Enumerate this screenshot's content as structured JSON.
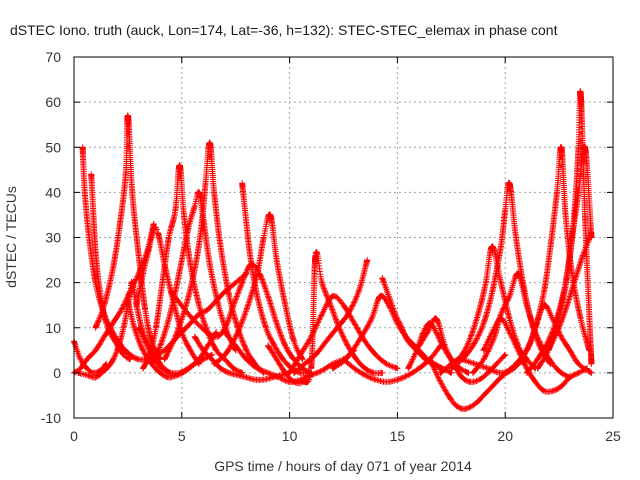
{
  "chart_data": {
    "type": "scatter",
    "title": "dSTEC Iono. truth (auck, Lon=174, Lat=-36, h=132): STEC-STEC_elemax in phase cont",
    "xlabel": "GPS time / hours of day 071 of year 2014",
    "ylabel": "dSTEC  / TECUs",
    "xlim": [
      0,
      25
    ],
    "ylim": [
      -10,
      70
    ],
    "xticks": [
      0,
      5,
      10,
      15,
      20,
      25
    ],
    "yticks": [
      -10,
      0,
      10,
      20,
      30,
      40,
      50,
      60,
      70
    ],
    "grid": true,
    "legend": "none",
    "series_color": "#ff0000",
    "marker": "plus",
    "series": [
      {
        "x": [
          0.0,
          0.3,
          0.6,
          0.9,
          1.2,
          1.5
        ],
        "y": [
          7,
          3,
          1,
          0,
          0.5,
          2
        ]
      },
      {
        "x": [
          0.0,
          0.3,
          0.6,
          1.0,
          1.4,
          1.8,
          2.2,
          2.6,
          3.0,
          3.4,
          3.7
        ],
        "y": [
          0,
          1,
          3,
          5,
          8,
          11,
          14,
          18,
          22,
          27,
          33
        ]
      },
      {
        "x": [
          0.4,
          0.5,
          0.7,
          1.0,
          1.4,
          1.8,
          2.2,
          2.6,
          3.0,
          3.4,
          3.8,
          4.2,
          4.6,
          5.0,
          5.4,
          5.8,
          6.2,
          6.6,
          7.0,
          7.5,
          8.0
        ],
        "y": [
          50,
          40,
          30,
          20,
          13,
          9,
          6,
          4,
          3,
          3,
          4,
          5,
          7,
          9,
          11,
          13,
          14,
          16,
          18,
          20,
          22
        ]
      },
      {
        "x": [
          0.8,
          0.9,
          1.0,
          1.2,
          1.5,
          1.9,
          2.3,
          2.6
        ],
        "y": [
          44,
          35,
          27,
          18,
          11,
          7,
          4,
          3
        ]
      },
      {
        "x": [
          0.2,
          0.6,
          1.0,
          1.4,
          1.7,
          2.0,
          2.3,
          2.6,
          2.7,
          2.9,
          3.2,
          3.6,
          4.0,
          4.4
        ],
        "y": [
          0,
          -0.5,
          -1,
          0.5,
          2,
          5,
          10,
          18,
          20,
          15,
          9,
          5,
          2,
          0
        ]
      },
      {
        "x": [
          1.0,
          1.4,
          1.8,
          2.1,
          2.4,
          2.5,
          2.7,
          3.0,
          3.3,
          3.6,
          4.0
        ],
        "y": [
          10,
          15,
          23,
          32,
          44,
          57,
          40,
          26,
          14,
          7,
          3
        ]
      },
      {
        "x": [
          2.5,
          2.8,
          3.2,
          3.6,
          4.0,
          4.4,
          4.8,
          5.2,
          5.6,
          6.0,
          6.4
        ],
        "y": [
          16,
          10,
          5,
          2,
          0,
          -1,
          -0.5,
          0.5,
          2,
          3,
          4
        ]
      },
      {
        "x": [
          3.0,
          3.3,
          3.7,
          4.1,
          4.5,
          4.9,
          5.3,
          5.8,
          6.2,
          6.6
        ],
        "y": [
          10,
          7,
          3,
          1,
          0,
          0,
          1,
          3,
          6,
          9
        ]
      },
      {
        "x": [
          3.2,
          3.5,
          3.8,
          4.1,
          4.4,
          4.7,
          4.9,
          5.1,
          5.4,
          5.8,
          6.2,
          6.6,
          7.0,
          7.4,
          7.8
        ],
        "y": [
          1,
          4,
          10,
          20,
          30,
          36,
          46,
          35,
          24,
          15,
          9,
          5,
          3,
          1,
          0
        ]
      },
      {
        "x": [
          2.9,
          3.2,
          3.5,
          3.7,
          3.9,
          4.2,
          4.6,
          5.0,
          5.4,
          5.8
        ],
        "y": [
          15,
          22,
          28,
          32,
          31,
          24,
          16,
          9,
          5,
          2
        ]
      },
      {
        "x": [
          3.6,
          4.0,
          4.4,
          4.7,
          5.0,
          5.3,
          5.6,
          5.8,
          6.0,
          6.3,
          6.7,
          7.1,
          7.5
        ],
        "y": [
          2,
          6,
          12,
          18,
          25,
          32,
          37,
          40,
          34,
          24,
          15,
          9,
          5
        ]
      },
      {
        "x": [
          4.2,
          4.7,
          5.2,
          5.6,
          5.9,
          6.1,
          6.3,
          6.5,
          6.8,
          7.2,
          7.6,
          8.0,
          8.4,
          8.8
        ],
        "y": [
          3,
          8,
          15,
          23,
          32,
          42,
          51,
          40,
          28,
          17,
          10,
          5,
          2,
          0
        ]
      },
      {
        "x": [
          5.6,
          6.0,
          6.4,
          6.8,
          7.2,
          7.6,
          8.0,
          8.4,
          8.8,
          9.2,
          9.6,
          10.0
        ],
        "y": [
          8,
          5,
          3,
          1,
          0,
          -0.5,
          -1,
          -1.5,
          -1.5,
          -1,
          -0.5,
          0
        ]
      },
      {
        "x": [
          4.5,
          5.5,
          6.5,
          7.0,
          7.4,
          7.8,
          8.2,
          8.6,
          9.0,
          9.4,
          9.8,
          10.2,
          10.6,
          11.0
        ],
        "y": [
          18,
          12,
          8,
          10,
          15,
          20,
          24,
          22,
          17,
          11,
          6,
          3,
          1,
          0
        ]
      },
      {
        "x": [
          7.8,
          8.0,
          8.2,
          8.5,
          8.9,
          9.3,
          9.7,
          10.1,
          10.5,
          10.9
        ],
        "y": [
          42,
          33,
          25,
          17,
          10,
          6,
          3,
          1,
          0,
          0
        ]
      },
      {
        "x": [
          6.5,
          7.0,
          7.5,
          8.0,
          8.5,
          8.8,
          9.1,
          9.4,
          9.8,
          10.2,
          10.6
        ],
        "y": [
          2,
          4,
          8,
          14,
          22,
          30,
          35,
          25,
          15,
          7,
          3
        ]
      },
      {
        "x": [
          7.0,
          7.5,
          8.0,
          8.5,
          9.0,
          9.5,
          10.0,
          10.5,
          11.0,
          11.5,
          12.0,
          12.5,
          13.0
        ],
        "y": [
          9,
          6,
          3,
          1,
          0,
          -1,
          -2,
          -1.5,
          -0.5,
          0.5,
          2,
          3,
          5
        ]
      },
      {
        "x": [
          9.0,
          9.4,
          9.8,
          10.2,
          10.6,
          11.0,
          11.2,
          11.5,
          11.9,
          12.3,
          12.7,
          13.1,
          13.5,
          13.9,
          14.3
        ],
        "y": [
          6,
          3,
          0,
          -2,
          -2,
          1,
          26,
          20,
          15,
          10,
          6,
          3,
          1,
          0,
          0
        ]
      },
      {
        "x": [
          10.0,
          10.5,
          11.0,
          11.5,
          12.0,
          12.5,
          13.0,
          13.5,
          14.0,
          14.5,
          15.0
        ],
        "y": [
          0,
          4,
          8,
          13,
          17,
          15,
          11,
          7,
          4,
          2,
          1
        ]
      },
      {
        "x": [
          10.2,
          10.7,
          11.2,
          11.7,
          12.2,
          12.7,
          13.2,
          13.6
        ],
        "y": [
          0,
          2,
          4,
          7,
          10,
          13,
          18,
          25
        ]
      },
      {
        "x": [
          12.5,
          13.0,
          13.5,
          14.0,
          14.5,
          15.0,
          15.5,
          16.0,
          16.5,
          17.0
        ],
        "y": [
          3,
          1,
          -0.5,
          -1.5,
          -2,
          -1.5,
          -0.5,
          1,
          3,
          6
        ]
      },
      {
        "x": [
          12.0,
          12.6,
          13.2,
          13.8,
          14.2,
          14.6,
          15.0,
          15.4,
          15.8,
          16.2,
          16.6,
          17.0
        ],
        "y": [
          1,
          3,
          7,
          12,
          17,
          15,
          11,
          8,
          6,
          4,
          2,
          1
        ]
      },
      {
        "x": [
          14.3,
          14.6,
          14.9,
          15.2,
          15.5,
          15.9,
          16.3,
          16.7,
          17.1,
          17.5
        ],
        "y": [
          21,
          17,
          13,
          10,
          7,
          5,
          3,
          2,
          1,
          0
        ]
      },
      {
        "x": [
          15.5,
          15.9,
          16.2,
          16.5,
          16.8,
          17.1,
          17.5,
          17.9,
          18.3
        ],
        "y": [
          1,
          5,
          9,
          11,
          9,
          6,
          3,
          1,
          0
        ]
      },
      {
        "x": [
          16.0,
          16.4,
          16.8,
          17.2,
          17.6,
          18.0,
          18.4,
          18.8,
          19.2,
          19.6,
          20.0
        ],
        "y": [
          6,
          9,
          12,
          6,
          2,
          -1,
          -2,
          -1.5,
          0,
          2,
          4
        ]
      },
      {
        "x": [
          16.5,
          17.0,
          17.5,
          17.8,
          18.1,
          18.4,
          18.7,
          19.0,
          19.4,
          19.8,
          20.2,
          20.6,
          21.0
        ],
        "y": [
          3,
          -2,
          -6,
          -7.5,
          -8,
          -7.5,
          -6.5,
          -5,
          -3,
          -1,
          0.5,
          2,
          3
        ]
      },
      {
        "x": [
          17.0,
          17.5,
          18.0,
          18.4,
          18.8,
          19.1,
          19.4,
          19.8,
          20.2,
          20.6,
          21.0,
          21.4
        ],
        "y": [
          0,
          2,
          4,
          8,
          14,
          20,
          28,
          20,
          12,
          6,
          3,
          1
        ]
      },
      {
        "x": [
          17.5,
          18.0,
          18.5,
          19.0,
          19.4,
          19.8,
          20.0,
          20.2,
          20.5,
          20.9,
          21.3,
          21.7,
          22.1
        ],
        "y": [
          1,
          3,
          6,
          11,
          18,
          28,
          36,
          42,
          30,
          18,
          10,
          5,
          2
        ]
      },
      {
        "x": [
          18.5,
          19.0,
          19.5,
          19.8,
          20.2,
          20.6,
          21.0,
          21.4,
          21.8,
          22.2,
          22.6,
          23.0
        ],
        "y": [
          0,
          3,
          8,
          13,
          17,
          22,
          15,
          9,
          5,
          2,
          0,
          -1
        ]
      },
      {
        "x": [
          19.0,
          19.4,
          19.8,
          20.2,
          20.6,
          21.0,
          21.4,
          21.8,
          22.2,
          22.6,
          23.0,
          23.4,
          23.8
        ],
        "y": [
          5,
          9,
          12,
          9,
          5,
          1,
          -2,
          -4,
          -4,
          -3,
          -1,
          0,
          1
        ]
      },
      {
        "x": [
          18.0,
          18.6,
          19.2,
          19.8,
          20.4,
          21.0,
          21.4,
          21.8,
          22.2,
          22.6,
          23.0,
          23.4,
          24.0
        ],
        "y": [
          3,
          2,
          1,
          0,
          1,
          5,
          10,
          15,
          12,
          8,
          5,
          2,
          0
        ]
      },
      {
        "x": [
          20.0,
          20.5,
          21.0,
          21.4,
          21.8,
          22.1,
          22.4,
          22.6,
          22.8,
          23.1,
          23.5,
          23.9
        ],
        "y": [
          0,
          2,
          5,
          10,
          18,
          28,
          40,
          50,
          35,
          22,
          12,
          5
        ]
      },
      {
        "x": [
          21.0,
          21.5,
          22.0,
          22.4,
          22.8,
          23.1,
          23.4,
          23.7,
          24.0
        ],
        "y": [
          0,
          3,
          7,
          12,
          20,
          30,
          40,
          50,
          30
        ]
      },
      {
        "x": [
          21.5,
          22.0,
          22.5,
          22.9,
          23.2,
          23.4,
          23.5,
          23.7,
          24.0
        ],
        "y": [
          1,
          5,
          13,
          22,
          35,
          50,
          62,
          35,
          2
        ]
      },
      {
        "x": [
          22.0,
          22.4,
          22.8,
          23.2,
          23.6,
          24.0
        ],
        "y": [
          5,
          9,
          14,
          20,
          26,
          31
        ]
      }
    ]
  }
}
